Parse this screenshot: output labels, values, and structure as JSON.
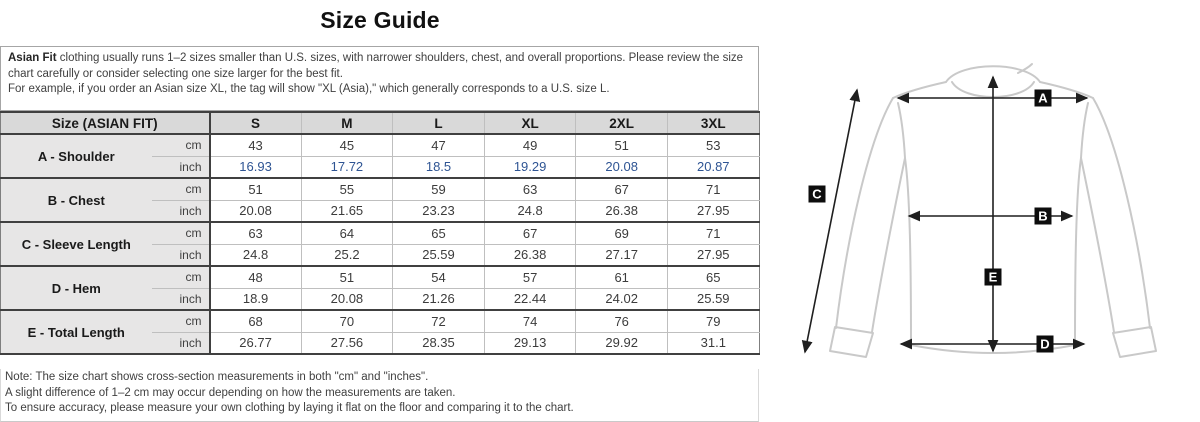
{
  "page": {
    "title": "Size Guide"
  },
  "intro": {
    "lead": "Asian Fit",
    "line1": " clothing usually runs 1–2 sizes smaller than U.S. sizes, with narrower shoulders, chest, and overall proportions. Please review the size chart carefully or consider selecting one size larger for the best fit.",
    "line2": "For example, if you order an Asian size XL, the tag will show \"XL (Asia),\" which generally corresponds to a U.S. size L."
  },
  "table": {
    "header": {
      "label": "Size (ASIAN FIT)",
      "sizes": [
        "S",
        "M",
        "L",
        "XL",
        "2XL",
        "3XL"
      ]
    },
    "unit_cm": "cm",
    "unit_inch": "inch",
    "rows": [
      {
        "label": "A - Shoulder",
        "accent": true,
        "cm": [
          "43",
          "45",
          "47",
          "49",
          "51",
          "53"
        ],
        "inch": [
          "16.93",
          "17.72",
          "18.5",
          "19.29",
          "20.08",
          "20.87"
        ]
      },
      {
        "label": "B - Chest",
        "accent": false,
        "cm": [
          "51",
          "55",
          "59",
          "63",
          "67",
          "71"
        ],
        "inch": [
          "20.08",
          "21.65",
          "23.23",
          "24.8",
          "26.38",
          "27.95"
        ]
      },
      {
        "label": "C - Sleeve Length",
        "accent": false,
        "cm": [
          "63",
          "64",
          "65",
          "67",
          "69",
          "71"
        ],
        "inch": [
          "24.8",
          "25.2",
          "25.59",
          "26.38",
          "27.17",
          "27.95"
        ]
      },
      {
        "label": "D - Hem",
        "accent": false,
        "cm": [
          "48",
          "51",
          "54",
          "57",
          "61",
          "65"
        ],
        "inch": [
          "18.9",
          "20.08",
          "21.26",
          "22.44",
          "24.02",
          "25.59"
        ]
      },
      {
        "label": "E - Total Length",
        "accent": false,
        "cm": [
          "68",
          "70",
          "72",
          "74",
          "76",
          "79"
        ],
        "inch": [
          "26.77",
          "27.56",
          "28.35",
          "29.13",
          "29.92",
          "31.1"
        ]
      }
    ]
  },
  "notes": [
    "Note: The size chart shows cross-section measurements in both \"cm\" and \"inches\".",
    "A slight difference of 1–2 cm may occur depending on how the measurements are taken.",
    "To ensure accuracy, please measure your own clothing by laying it flat on the floor and comparing it to the chart."
  ],
  "diagram": {
    "labels": [
      "A",
      "B",
      "C",
      "D",
      "E"
    ]
  },
  "colors": {
    "inch_accent": "#2e5493",
    "header_bg": "#d9d9d9",
    "label_bg": "#e7e6e6",
    "heavy_border": "#404040",
    "light_border": "#bfbfbf",
    "shirt_outline": "#c9c9c9",
    "arrow": "#1f1f1f"
  }
}
